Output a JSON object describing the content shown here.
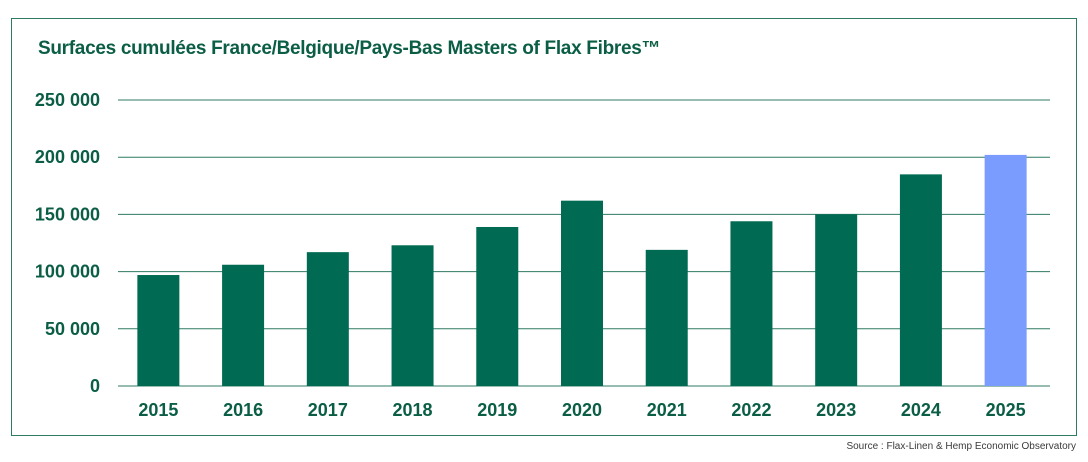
{
  "chart_data": {
    "type": "bar",
    "title": "Surfaces cumulées France/Belgique/Pays-Bas Masters of Flax Fibres™",
    "xlabel": "",
    "ylabel": "",
    "categories": [
      "2015",
      "2016",
      "2017",
      "2018",
      "2019",
      "2020",
      "2021",
      "2022",
      "2023",
      "2024",
      "2025"
    ],
    "values": [
      97000,
      106000,
      117000,
      123000,
      139000,
      162000,
      119000,
      144000,
      150000,
      185000,
      202000
    ],
    "highlight_category": "2025",
    "ylim": [
      0,
      250000
    ],
    "yticks": [
      0,
      50000,
      100000,
      150000,
      200000,
      250000
    ],
    "ytick_labels": [
      "0",
      "50 000",
      "100 000",
      "150 000",
      "200 000",
      "250 000"
    ],
    "grid": true,
    "colors": {
      "bar": "#006b52",
      "highlight_bar": "#7b9cff",
      "grid": "#2f7a63",
      "text": "#0b5e45",
      "frame": "#2f7a63"
    }
  },
  "source": "Source : Flax-Linen & Hemp Economic Observatory"
}
